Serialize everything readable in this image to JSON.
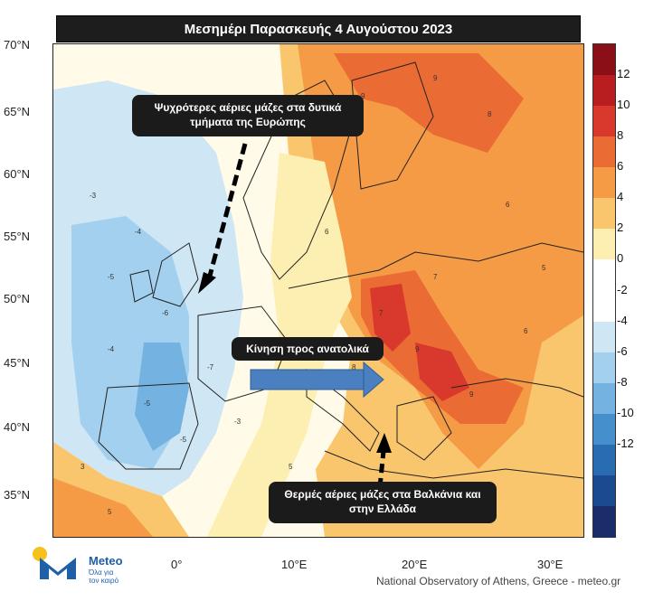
{
  "title": "Μεσημέρι Παρασκευής 4 Αυγούστου 2023",
  "lat_labels": [
    "70°N",
    "65°N",
    "60°N",
    "55°N",
    "50°N",
    "45°N",
    "40°N",
    "35°N"
  ],
  "lon_labels": [
    "0°",
    "10°E",
    "20°E",
    "30°E"
  ],
  "colorbar": {
    "ticks": [
      "12",
      "10",
      "8",
      "6",
      "4",
      "2",
      "0",
      "-2",
      "-4",
      "-6",
      "-8",
      "-10",
      "-12"
    ],
    "colors": [
      "#8b0f16",
      "#b81e20",
      "#d9382c",
      "#ea6b34",
      "#f59a45",
      "#f9c66e",
      "#fdeeb1",
      "#ffffff",
      "#ffffff",
      "#cfe6f5",
      "#a3d0ee",
      "#74b3e1",
      "#4590cc",
      "#2a6cb1",
      "#1c4a91",
      "#1a2c6a"
    ]
  },
  "callouts": {
    "west": "Ψυχρότερες αέριες μάζες στα δυτικά τμήματα της Ευρώπης",
    "east_move": "Κίνηση προς ανατολικά",
    "balkans": "Θερμές αέριες μάζες στα Βαλκάνια και στην Ελλάδα"
  },
  "logo": {
    "name": "Meteo",
    "tagline": "Όλα για τον καιρό"
  },
  "credit": "National Observatory of Athens, Greece - meteo.gr",
  "map_numbers": [
    "-3",
    "-4",
    "-5",
    "-6",
    "-7",
    "3",
    "5",
    "6",
    "7",
    "8",
    "9"
  ]
}
